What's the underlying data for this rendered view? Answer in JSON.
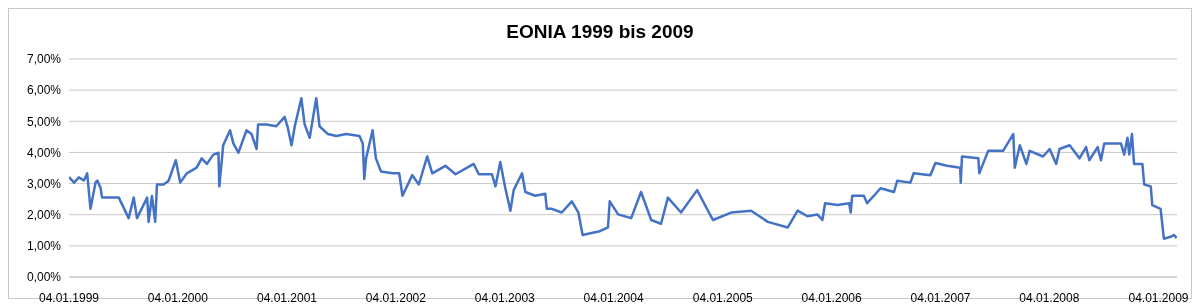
{
  "chart_data": {
    "type": "line",
    "title": "EONIA 1999 bis 2009",
    "grid": "y",
    "marker": "none",
    "line_style": "solid",
    "xlim": [
      "1999-01-04",
      "2009-03-07"
    ],
    "xticks": [
      {
        "value": "1999-01-04",
        "label": "04.01.1999"
      },
      {
        "value": "2000-01-04",
        "label": "04.01.2000"
      },
      {
        "value": "2001-01-04",
        "label": "04.01.2001"
      },
      {
        "value": "2002-01-04",
        "label": "04.01.2002"
      },
      {
        "value": "2003-01-04",
        "label": "04.01.2003"
      },
      {
        "value": "2004-01-04",
        "label": "04.01.2004"
      },
      {
        "value": "2005-01-04",
        "label": "04.01.2005"
      },
      {
        "value": "2006-01-04",
        "label": "04.01.2006"
      },
      {
        "value": "2007-01-04",
        "label": "04.01.2007"
      },
      {
        "value": "2008-01-04",
        "label": "04.01.2008"
      },
      {
        "value": "2009-01-04",
        "label": "04.01.2009"
      }
    ],
    "ylim": [
      0,
      7
    ],
    "yticks": [
      {
        "value": 0,
        "label": "0,00%"
      },
      {
        "value": 1,
        "label": "1,00%"
      },
      {
        "value": 2,
        "label": "2,00%"
      },
      {
        "value": 3,
        "label": "3,00%"
      },
      {
        "value": 4,
        "label": "4,00%"
      },
      {
        "value": 5,
        "label": "5,00%"
      },
      {
        "value": 6,
        "label": "6,00%"
      },
      {
        "value": 7,
        "label": "7,00%"
      }
    ],
    "x": [
      "1999-01-04",
      "1999-01-21",
      "1999-02-06",
      "1999-02-23",
      "1999-03-06",
      "1999-03-17",
      "1999-04-03",
      "1999-04-09",
      "1999-04-20",
      "1999-04-25",
      "1999-05-23",
      "1999-06-20",
      "1999-07-23",
      "1999-08-09",
      "1999-08-20",
      "1999-09-23",
      "1999-09-28",
      "1999-10-09",
      "1999-10-20",
      "1999-10-26",
      "1999-11-17",
      "1999-12-04",
      "1999-12-28",
      "2000-01-12",
      "2000-02-03",
      "2000-03-07",
      "2000-03-24",
      "2000-04-10",
      "2000-05-02",
      "2000-05-19",
      "2000-05-22",
      "2000-06-04",
      "2000-06-27",
      "2000-07-08",
      "2000-07-25",
      "2000-08-21",
      "2000-09-07",
      "2000-09-24",
      "2000-09-29",
      "2000-10-27",
      "2000-11-29",
      "2000-12-27",
      "2001-01-07",
      "2001-01-19",
      "2001-01-30",
      "2001-02-21",
      "2001-03-04",
      "2001-03-21",
      "2001-04-12",
      "2001-04-23",
      "2001-05-21",
      "2001-06-18",
      "2001-07-21",
      "2001-09-04",
      "2001-09-15",
      "2001-09-20",
      "2001-09-26",
      "2001-10-18",
      "2001-10-29",
      "2001-11-15",
      "2001-12-24",
      "2002-01-15",
      "2002-01-26",
      "2002-02-28",
      "2002-03-22",
      "2002-04-19",
      "2002-05-06",
      "2002-06-19",
      "2002-07-23",
      "2002-09-22",
      "2002-10-09",
      "2002-11-22",
      "2002-12-04",
      "2002-12-20",
      "2003-01-06",
      "2003-01-23",
      "2003-02-03",
      "2003-03-03",
      "2003-03-14",
      "2003-04-16",
      "2003-05-20",
      "2003-05-25",
      "2003-06-11",
      "2003-07-14",
      "2003-08-17",
      "2003-09-08",
      "2003-09-22",
      "2003-10-22",
      "2003-11-19",
      "2003-12-16",
      "2003-12-22",
      "2004-01-19",
      "2004-03-03",
      "2004-04-05",
      "2004-05-09",
      "2004-06-11",
      "2004-07-04",
      "2004-08-17",
      "2004-10-10",
      "2004-12-02",
      "2005-02-01",
      "2005-04-09",
      "2005-06-04",
      "2005-08-10",
      "2005-09-12",
      "2005-10-15",
      "2005-11-17",
      "2005-12-04",
      "2005-12-13",
      "2006-01-24",
      "2006-03-04",
      "2006-03-09",
      "2006-03-14",
      "2006-04-22",
      "2006-05-03",
      "2006-05-26",
      "2006-06-17",
      "2006-08-01",
      "2006-08-12",
      "2006-09-25",
      "2006-10-06",
      "2006-12-01",
      "2006-12-18",
      "2007-01-26",
      "2007-03-11",
      "2007-03-13",
      "2007-03-17",
      "2007-05-11",
      "2007-05-14",
      "2007-06-13",
      "2007-08-02",
      "2007-09-05",
      "2007-09-10",
      "2007-09-27",
      "2007-10-19",
      "2007-10-30",
      "2007-12-14",
      "2008-01-05",
      "2008-01-27",
      "2008-02-07",
      "2008-03-12",
      "2008-04-14",
      "2008-05-06",
      "2008-05-17",
      "2008-06-14",
      "2008-06-25",
      "2008-07-06",
      "2008-08-14",
      "2008-08-31",
      "2008-09-11",
      "2008-09-22",
      "2008-09-28",
      "2008-10-07",
      "2008-10-14",
      "2008-11-11",
      "2008-11-17",
      "2008-12-09",
      "2008-12-14",
      "2009-01-11",
      "2009-01-22",
      "2009-02-14",
      "2009-02-25",
      "2009-03-06"
    ],
    "series": [
      {
        "color": "#4472c4",
        "values": [
          3.21,
          3.03,
          3.2,
          3.1,
          3.33,
          2.19,
          3.03,
          3.1,
          2.85,
          2.55,
          2.55,
          2.55,
          1.89,
          2.55,
          1.89,
          2.55,
          1.77,
          2.6,
          1.77,
          2.97,
          2.97,
          3.09,
          3.75,
          3.03,
          3.33,
          3.51,
          3.81,
          3.63,
          3.93,
          3.99,
          2.91,
          4.23,
          4.71,
          4.29,
          3.99,
          4.71,
          4.59,
          4.11,
          4.9,
          4.9,
          4.84,
          5.14,
          4.78,
          4.23,
          4.84,
          5.74,
          4.9,
          4.47,
          5.74,
          4.84,
          4.59,
          4.53,
          4.59,
          4.53,
          4.29,
          3.15,
          3.81,
          4.71,
          3.81,
          3.39,
          3.33,
          3.33,
          2.61,
          3.27,
          2.97,
          3.87,
          3.33,
          3.57,
          3.3,
          3.63,
          3.3,
          3.3,
          2.91,
          3.69,
          2.85,
          2.13,
          2.79,
          3.33,
          2.73,
          2.61,
          2.67,
          2.19,
          2.19,
          2.07,
          2.43,
          2.07,
          1.35,
          1.41,
          1.47,
          1.59,
          2.43,
          2.01,
          1.89,
          2.73,
          1.83,
          1.71,
          2.55,
          2.07,
          2.79,
          1.83,
          2.07,
          2.13,
          1.77,
          1.59,
          2.13,
          1.95,
          2.01,
          1.83,
          2.37,
          2.31,
          2.37,
          2.07,
          2.61,
          2.61,
          2.37,
          2.61,
          2.85,
          2.73,
          3.09,
          3.03,
          3.33,
          3.27,
          3.66,
          3.57,
          3.51,
          3.03,
          3.87,
          3.81,
          3.33,
          4.05,
          4.05,
          4.59,
          3.51,
          4.23,
          3.63,
          4.05,
          3.87,
          4.11,
          3.63,
          4.11,
          4.23,
          3.81,
          4.17,
          3.75,
          4.17,
          3.75,
          4.29,
          4.29,
          4.29,
          3.93,
          4.47,
          3.93,
          4.59,
          3.63,
          3.63,
          2.97,
          2.91,
          2.31,
          2.19,
          1.23,
          1.29,
          1.35,
          1.25
        ]
      }
    ]
  }
}
